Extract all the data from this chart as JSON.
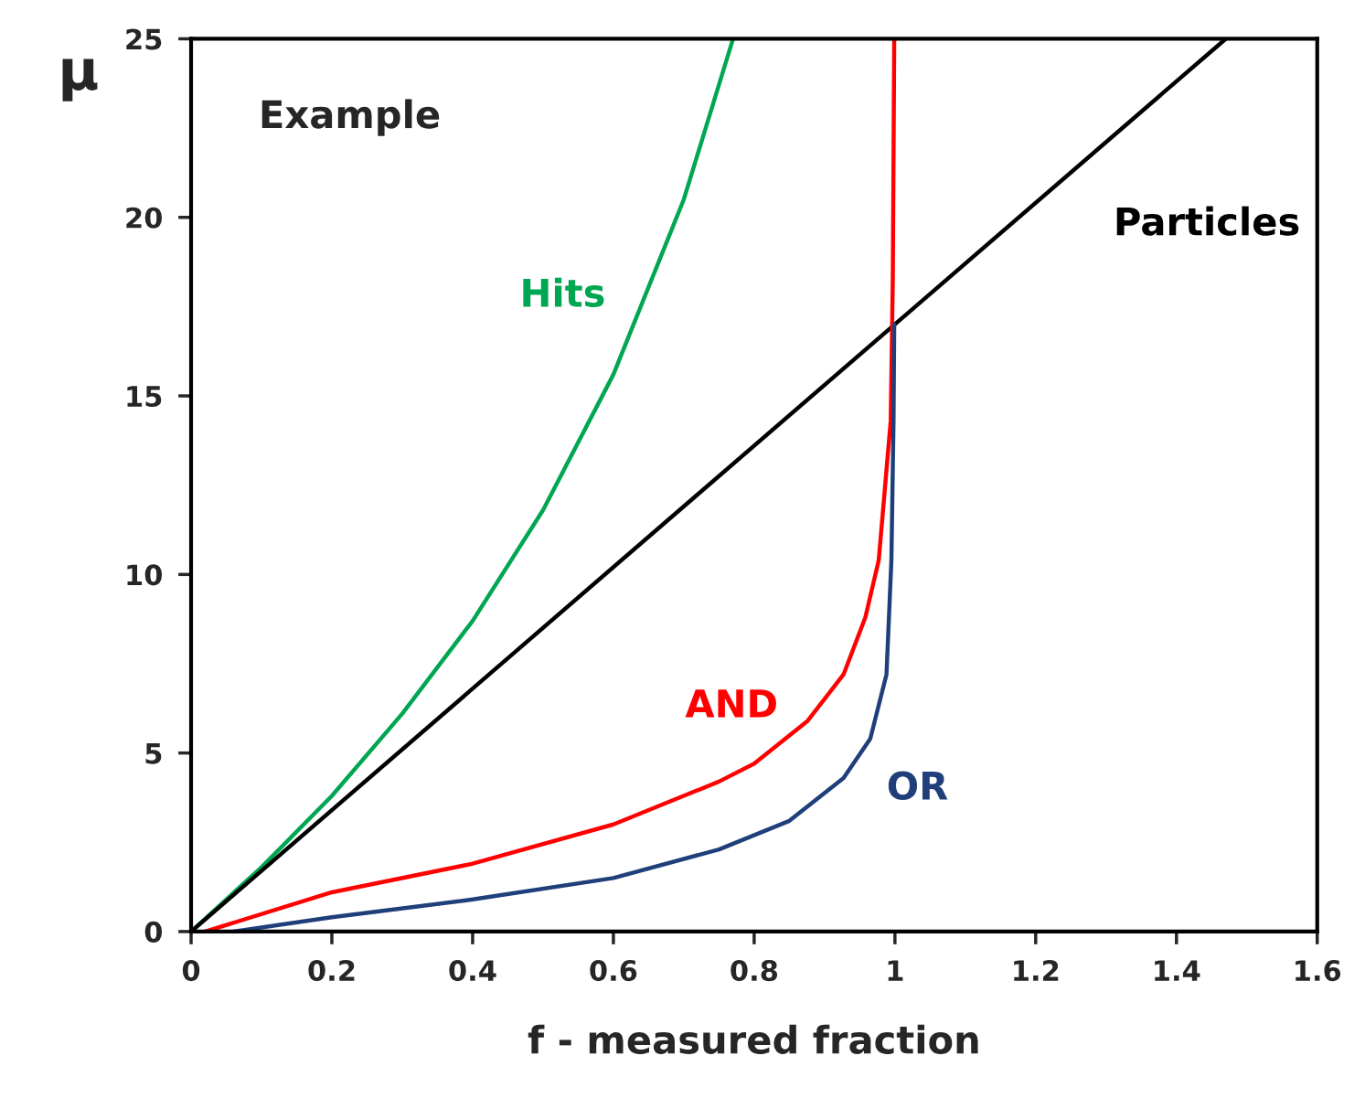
{
  "chart_data": {
    "type": "line",
    "xlabel": "f - measured fraction",
    "ylabel": "μ",
    "xlim": [
      0,
      1.6
    ],
    "ylim": [
      0,
      25
    ],
    "xticks": [
      0,
      0.2,
      0.4,
      0.6,
      0.8,
      1,
      1.2,
      1.4,
      1.6
    ],
    "yticks": [
      0,
      5,
      10,
      15,
      20,
      25
    ],
    "grid": false,
    "legend": false,
    "marker": "none",
    "line_style": "solid",
    "annotations": [
      "Example"
    ],
    "series": [
      {
        "name": "Hits",
        "color": "#00a651",
        "x": [
          0,
          0.1,
          0.2,
          0.3,
          0.4,
          0.5,
          0.6,
          0.7,
          0.77
        ],
        "values": [
          0,
          1.8,
          3.8,
          6.1,
          8.7,
          11.8,
          15.6,
          20.5,
          25
        ]
      },
      {
        "name": "Particles",
        "color": "#000000",
        "x": [
          0,
          1.47
        ],
        "values": [
          0,
          25
        ]
      },
      {
        "name": "AND",
        "color": "#ff0000",
        "x": [
          0.02,
          0.2,
          0.4,
          0.6,
          0.75,
          0.8,
          0.876,
          0.927,
          0.958,
          0.977,
          0.994,
          0.997,
          0.999
        ],
        "values": [
          0,
          1.1,
          1.9,
          3.0,
          4.2,
          4.7,
          5.9,
          7.2,
          8.8,
          10.4,
          14.3,
          18.3,
          25
        ]
      },
      {
        "name": "OR",
        "color": "#1f3f7a",
        "x": [
          0.06,
          0.2,
          0.4,
          0.6,
          0.75,
          0.85,
          0.927,
          0.965,
          0.988,
          0.995,
          0.998,
          0.999
        ],
        "values": [
          0,
          0.4,
          0.9,
          1.5,
          2.3,
          3.1,
          4.3,
          5.4,
          7.2,
          10.4,
          14.3,
          17
        ]
      }
    ]
  }
}
